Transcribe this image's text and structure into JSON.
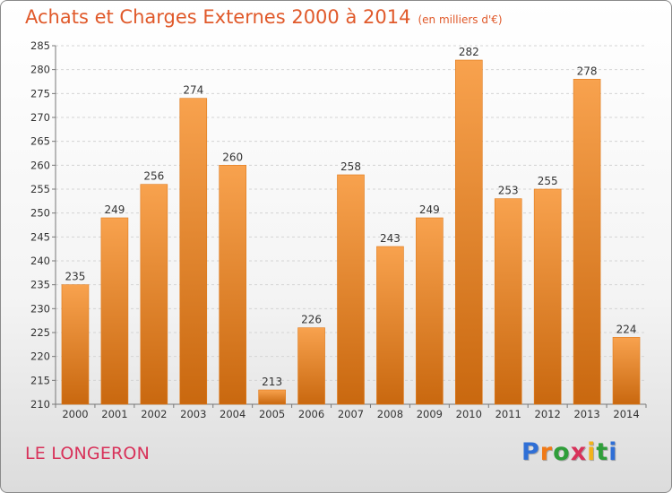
{
  "title": "Achats et Charges Externes 2000 à 2014",
  "subtitle": "(en milliers d'€)",
  "footer": {
    "city": "LE LONGERON"
  },
  "logo": {
    "letters": [
      "P",
      "r",
      "o",
      "x",
      "i",
      "t",
      "i"
    ],
    "colors": [
      "#2f6fd6",
      "#f07a18",
      "#2f9e3a",
      "#d8325a",
      "#f2b21b",
      "#2f9e3a",
      "#2f6fd6"
    ]
  },
  "colors": {
    "bar_top": "#f8a24e",
    "bar_bottom": "#c9680f",
    "bar_edge": "#e07a1a"
  },
  "chart_data": {
    "type": "bar",
    "title": "Achats et Charges Externes 2000 à 2014",
    "subtitle": "(en milliers d'€)",
    "xlabel": "",
    "ylabel": "",
    "categories": [
      "2000",
      "2001",
      "2002",
      "2003",
      "2004",
      "2005",
      "2006",
      "2007",
      "2008",
      "2009",
      "2010",
      "2011",
      "2012",
      "2013",
      "2014"
    ],
    "values": [
      235,
      249,
      256,
      274,
      260,
      213,
      226,
      258,
      243,
      249,
      282,
      253,
      255,
      278,
      224
    ],
    "ylim": [
      210,
      285
    ],
    "yticks": [
      210,
      215,
      220,
      225,
      230,
      235,
      240,
      245,
      250,
      255,
      260,
      265,
      270,
      275,
      280,
      285
    ],
    "grid": true,
    "legend": "none"
  }
}
